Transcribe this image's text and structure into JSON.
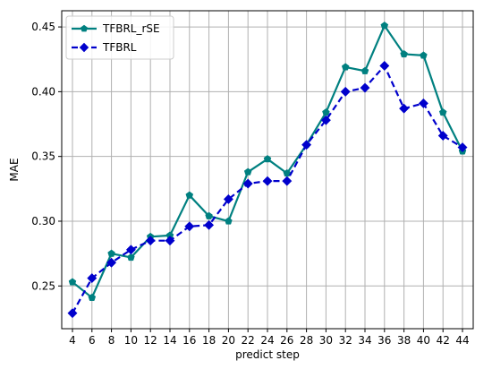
{
  "chart_data": {
    "type": "line",
    "xlabel": "predict step",
    "ylabel": "MAE",
    "x": [
      4,
      6,
      8,
      10,
      12,
      14,
      16,
      18,
      20,
      22,
      24,
      26,
      28,
      30,
      32,
      34,
      36,
      38,
      40,
      42,
      44
    ],
    "x_ticks": [
      "4",
      "6",
      "8",
      "10",
      "12",
      "14",
      "16",
      "18",
      "20",
      "22",
      "24",
      "26",
      "28",
      "30",
      "32",
      "34",
      "36",
      "38",
      "40",
      "42",
      "44"
    ],
    "y_ticks": [
      "0.25",
      "0.30",
      "0.35",
      "0.40",
      "0.45"
    ],
    "y_tick_values": [
      0.25,
      0.3,
      0.35,
      0.4,
      0.45
    ],
    "xlim": [
      2.9,
      45.1
    ],
    "ylim": [
      0.217,
      0.4625
    ],
    "grid": true,
    "legend_position": "top-left",
    "series": [
      {
        "name": "TFBRL_rSE",
        "color": "#008080",
        "line_style": "solid",
        "marker": "pentagon",
        "values": [
          0.253,
          0.241,
          0.275,
          0.272,
          0.288,
          0.289,
          0.32,
          0.304,
          0.3,
          0.338,
          0.348,
          0.337,
          0.359,
          0.384,
          0.419,
          0.416,
          0.451,
          0.429,
          0.428,
          0.384,
          0.354
        ]
      },
      {
        "name": "TFBRL",
        "color": "#0000cc",
        "line_style": "dashed",
        "marker": "diamond",
        "values": [
          0.229,
          0.256,
          0.268,
          0.278,
          0.285,
          0.285,
          0.296,
          0.297,
          0.317,
          0.329,
          0.331,
          0.331,
          0.359,
          0.378,
          0.4,
          0.403,
          0.42,
          0.387,
          0.391,
          0.366,
          0.357
        ]
      }
    ]
  }
}
